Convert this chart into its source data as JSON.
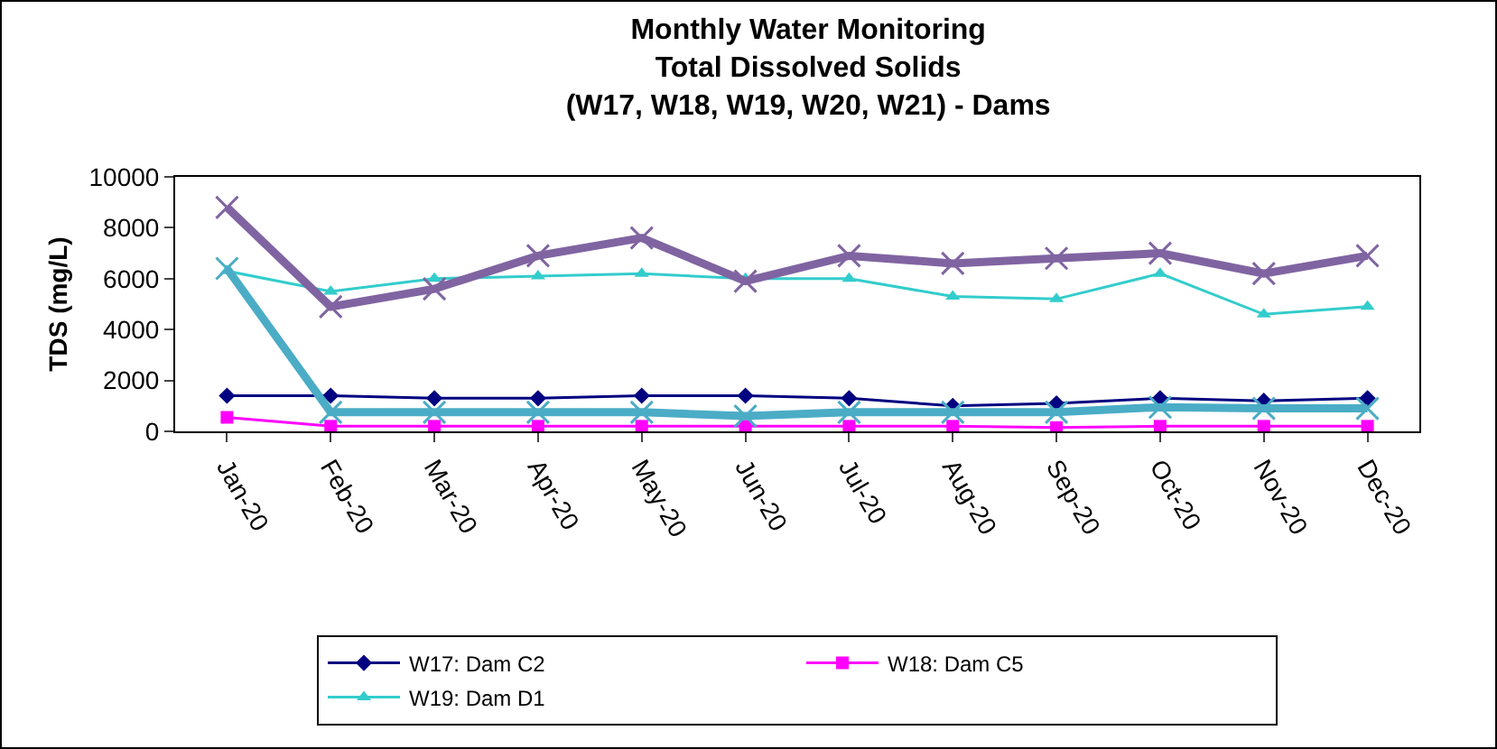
{
  "chart_data": {
    "type": "line",
    "title": "Monthly Water Monitoring\nTotal Dissolved Solids\n(W17, W18, W19, W20, W21) - Dams",
    "ylabel": "TDS (mg/L)",
    "categories": [
      "Jan-20",
      "Feb-20",
      "Mar-20",
      "Apr-20",
      "May-20",
      "Jun-20",
      "Jul-20",
      "Aug-20",
      "Sep-20",
      "Oct-20",
      "Nov-20",
      "Dec-20"
    ],
    "series": [
      {
        "name": "W17: Dam C2",
        "color": "#000080",
        "marker": "diamond",
        "values": [
          1400,
          1400,
          1300,
          1300,
          1400,
          1400,
          1300,
          1000,
          1100,
          1300,
          1200,
          1300
        ]
      },
      {
        "name": "W18: Dam C5",
        "color": "#ff00ff",
        "marker": "square",
        "values": [
          550,
          200,
          200,
          200,
          200,
          200,
          200,
          200,
          150,
          200,
          200,
          200
        ]
      },
      {
        "name": "W19: Dam D1",
        "color": "#33cccc",
        "marker": "triangle",
        "values": [
          6300,
          5500,
          6000,
          6100,
          6200,
          6000,
          6000,
          5300,
          5200,
          6200,
          4600,
          4900
        ]
      },
      {
        "color": "#4bacc6",
        "marker": "cross",
        "values": [
          6400,
          750,
          750,
          750,
          750,
          600,
          750,
          750,
          750,
          950,
          900,
          900
        ]
      },
      {
        "color": "#8064a2",
        "marker": "cross",
        "values": [
          8800,
          4900,
          5600,
          6900,
          7600,
          5900,
          6900,
          6600,
          6800,
          7000,
          6200,
          6900
        ]
      }
    ],
    "ylim": [
      0,
      10000
    ],
    "yticks": [
      0,
      2000,
      4000,
      6000,
      8000,
      10000
    ],
    "grid": false,
    "legend": "bottom",
    "line_style": "solid"
  }
}
